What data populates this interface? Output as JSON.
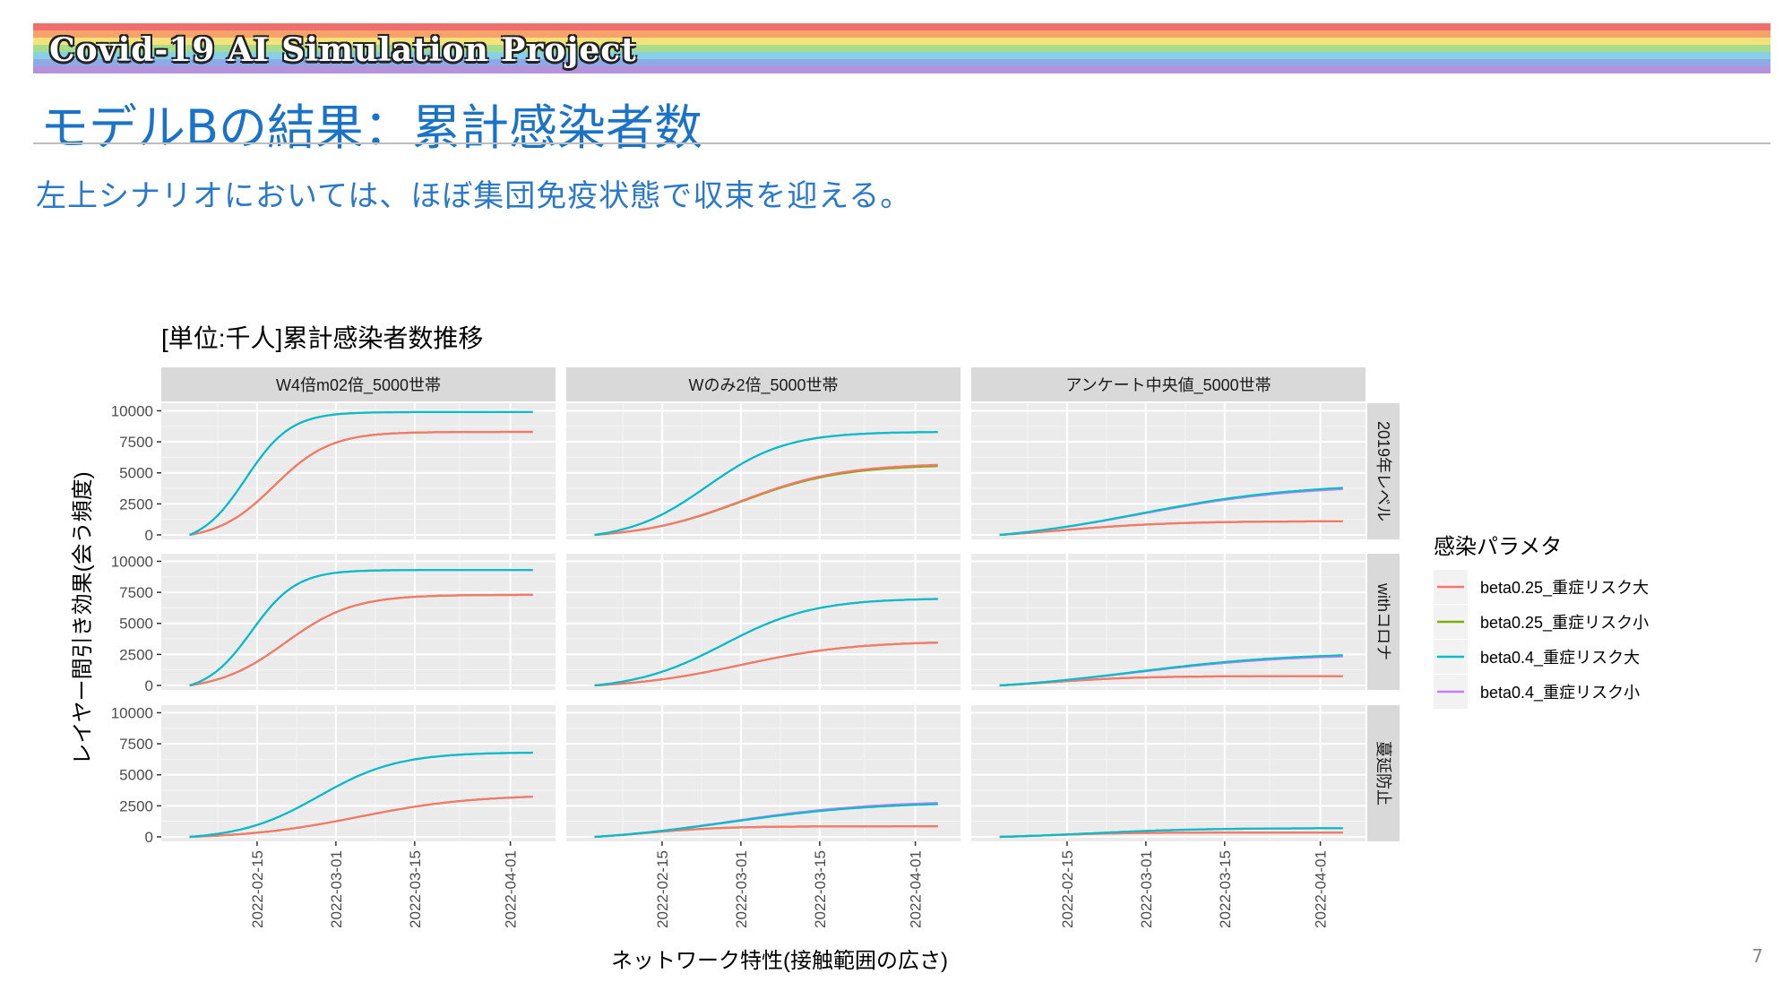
{
  "slide": {
    "brand": "Covid-19 AI Simulation Project",
    "title": "モデルBの結果：累計感染者数",
    "subtitle": "左上シナリオにおいては、ほぼ集団免疫状態で収束を迎える。",
    "page_number": "7",
    "rainbow_colors": [
      "#ef6e6e",
      "#f5a36a",
      "#f6e27a",
      "#a7dd8c",
      "#87d1e6",
      "#8fa8e6",
      "#b493dc"
    ],
    "title_color": "#1a73c6",
    "subtitle_color": "#2a78c8"
  },
  "chart_data": {
    "type": "line",
    "title": "[単位:千人]累計感染者数推移",
    "xlabel": "ネットワーク特性(接触範囲の広さ)",
    "ylabel": "レイヤー間引き効果(会う頻度)",
    "x_ticks": [
      "2022-02-15",
      "2022-03-01",
      "2022-03-15",
      "2022-04-01"
    ],
    "x_range": [
      "2022-02-01",
      "2022-04-06"
    ],
    "y_ticks": [
      "0",
      "2500",
      "5000",
      "7500",
      "10000"
    ],
    "ylim": [
      0,
      10000
    ],
    "columns": [
      "W4倍m02倍_5000世帯",
      "Wのみ2倍_5000世帯",
      "アンケート中央値_5000世帯"
    ],
    "rows": [
      "2019年レベル",
      "withコロナ",
      "蔓延防止"
    ],
    "legend_title": "感染パラメタ",
    "legend_placement": "right",
    "grid": true,
    "panel_background": "#ebebeb",
    "strip_background": "#d9d9d9",
    "series": [
      {
        "name": "beta0.25_重症リスク大",
        "color": "#F8766D"
      },
      {
        "name": "beta0.25_重症リスク小",
        "color": "#7CAE00"
      },
      {
        "name": "beta0.4_重症リスク大",
        "color": "#00BFC4"
      },
      {
        "name": "beta0.4_重症リスク小",
        "color": "#C77CFF"
      }
    ],
    "panels": [
      {
        "col": 0,
        "row": 0,
        "final": [
          8300,
          8300,
          9900,
          9900
        ],
        "midpoint": [
          "2022-02-18",
          "2022-02-18",
          "2022-02-13",
          "2022-02-13"
        ],
        "days_scale": [
          5,
          5,
          4,
          4
        ]
      },
      {
        "col": 1,
        "row": 0,
        "final": [
          5700,
          5600,
          8300,
          8300
        ],
        "midpoint": [
          "2022-03-01",
          "2022-03-01",
          "2022-02-23",
          "2022-02-23"
        ],
        "days_scale": [
          9,
          9,
          7,
          7
        ]
      },
      {
        "col": 2,
        "row": 0,
        "final": [
          1100,
          1100,
          3900,
          3800
        ],
        "midpoint": [
          "2022-02-14",
          "2022-02-14",
          "2022-02-28",
          "2022-02-28"
        ],
        "days_scale": [
          10,
          10,
          14,
          14
        ]
      },
      {
        "col": 0,
        "row": 1,
        "final": [
          7300,
          7300,
          9300,
          9300
        ],
        "midpoint": [
          "2022-02-20",
          "2022-02-20",
          "2022-02-14",
          "2022-02-14"
        ],
        "days_scale": [
          6,
          6,
          4,
          4
        ]
      },
      {
        "col": 1,
        "row": 1,
        "final": [
          3500,
          3500,
          7000,
          7000
        ],
        "midpoint": [
          "2022-03-01",
          "2022-03-01",
          "2022-02-26",
          "2022-02-26"
        ],
        "days_scale": [
          10,
          10,
          8,
          8
        ]
      },
      {
        "col": 2,
        "row": 1,
        "final": [
          750,
          750,
          2500,
          2400
        ],
        "midpoint": [
          "2022-02-12",
          "2022-02-12",
          "2022-02-27",
          "2022-02-27"
        ],
        "days_scale": [
          8,
          8,
          14,
          14
        ]
      },
      {
        "col": 0,
        "row": 2,
        "final": [
          3300,
          3300,
          6800,
          6800
        ],
        "midpoint": [
          "2022-03-05",
          "2022-03-05",
          "2022-02-26",
          "2022-02-26"
        ],
        "days_scale": [
          10,
          10,
          7,
          7
        ]
      },
      {
        "col": 1,
        "row": 2,
        "final": [
          850,
          850,
          2700,
          2800
        ],
        "midpoint": [
          "2022-02-12",
          "2022-02-12",
          "2022-02-27",
          "2022-02-27"
        ],
        "days_scale": [
          7,
          7,
          13,
          13
        ]
      },
      {
        "col": 2,
        "row": 2,
        "final": [
          350,
          350,
          700,
          700
        ],
        "midpoint": [
          "2022-02-11",
          "2022-02-11",
          "2022-02-19",
          "2022-02-19"
        ],
        "days_scale": [
          7,
          7,
          10,
          10
        ]
      }
    ]
  }
}
